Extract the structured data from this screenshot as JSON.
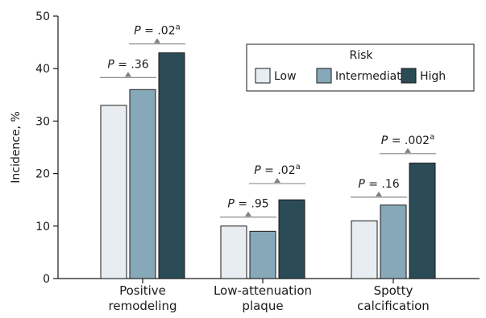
{
  "chart_data": {
    "type": "bar",
    "ylabel": "Incidence, %",
    "ylim": [
      0,
      50
    ],
    "yticks": [
      0,
      10,
      20,
      30,
      40,
      50
    ],
    "categories": [
      [
        "Positive",
        "remodeling"
      ],
      [
        "Low-attenuation",
        "plaque"
      ],
      [
        "Spotty",
        "calcification"
      ]
    ],
    "series": [
      {
        "name": "Low",
        "color": "#e7edf1",
        "values": [
          33,
          10,
          11
        ]
      },
      {
        "name": "Intermediate",
        "color": "#86a8b8",
        "values": [
          36,
          9,
          14
        ]
      },
      {
        "name": "High",
        "color": "#2b4b56",
        "values": [
          43,
          15,
          22
        ]
      }
    ],
    "legend": {
      "title": "Risk",
      "position": "top-right"
    },
    "annotations": [
      {
        "category": 0,
        "text": "P = .36",
        "sup": "",
        "level": 38.3,
        "from_series": 0,
        "to_series": 1
      },
      {
        "category": 0,
        "text": "P = .02",
        "sup": "a",
        "level": 44.7,
        "from_series": 1,
        "to_series": 2
      },
      {
        "category": 1,
        "text": "P = .95",
        "sup": "",
        "level": 11.7,
        "from_series": 0,
        "to_series": 1
      },
      {
        "category": 1,
        "text": "P = .02",
        "sup": "a",
        "level": 18.1,
        "from_series": 1,
        "to_series": 2
      },
      {
        "category": 2,
        "text": "P = .16",
        "sup": "",
        "level": 15.5,
        "from_series": 0,
        "to_series": 1
      },
      {
        "category": 2,
        "text": "P = .002",
        "sup": "a",
        "level": 23.8,
        "from_series": 1,
        "to_series": 2
      }
    ]
  }
}
